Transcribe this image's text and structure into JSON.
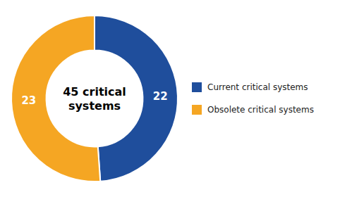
{
  "chart_data": {
    "type": "donut",
    "categories": [
      "Current critical systems",
      "Obsolete critical systems"
    ],
    "values": [
      22,
      23
    ],
    "colors": [
      "#1F4E9C",
      "#F5A623"
    ],
    "data_labels": true,
    "legend": "right",
    "annotations": [
      "45 critical",
      "systems"
    ]
  }
}
